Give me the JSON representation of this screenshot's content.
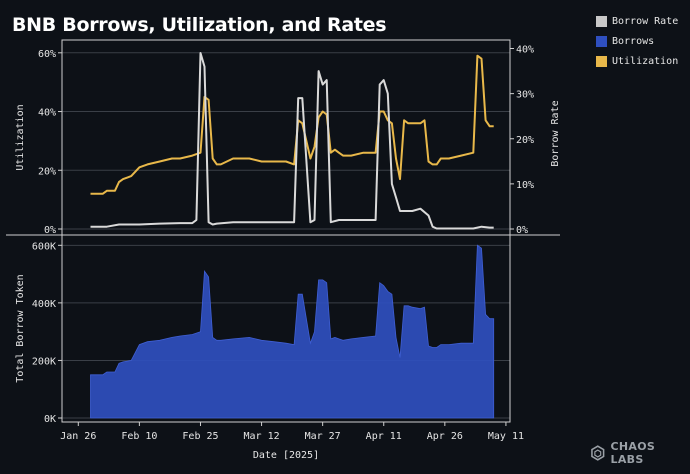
{
  "title": "BNB Borrows, Utilization, and Rates",
  "brand": "CHAOS LABS",
  "legend": [
    {
      "label": "Borrow Rate",
      "color": "#c8c8c8"
    },
    {
      "label": "Borrows",
      "color": "#2f4fbf"
    },
    {
      "label": "Utilization",
      "color": "#e8b84a"
    }
  ],
  "chart_data": {
    "type": "line",
    "xlabel": "Date [2025]",
    "x_ticks": [
      "Jan 26",
      "Feb 10",
      "Feb 25",
      "Mar 12",
      "Mar 27",
      "Apr 11",
      "Apr 26",
      "May 11"
    ],
    "x_range": [
      "2025-01-22",
      "2025-05-12"
    ],
    "panels": [
      {
        "name": "top",
        "ylabel_left": "Utilization",
        "ylabel_right": "Borrow Rate",
        "left_ticks": [
          "0%",
          "20%",
          "40%",
          "60%"
        ],
        "left_range": [
          0,
          0.63
        ],
        "right_ticks": [
          "0%",
          "10%",
          "20%",
          "30%",
          "40%"
        ],
        "right_range": [
          0,
          0.41
        ],
        "series": [
          {
            "name": "Utilization",
            "axis": "left",
            "color": "#e8b84a",
            "x": [
              "2025-01-29",
              "2025-02-01",
              "2025-02-02",
              "2025-02-04",
              "2025-02-05",
              "2025-02-06",
              "2025-02-08",
              "2025-02-10",
              "2025-02-12",
              "2025-02-15",
              "2025-02-18",
              "2025-02-20",
              "2025-02-23",
              "2025-02-25",
              "2025-02-26",
              "2025-02-27",
              "2025-02-28",
              "2025-03-01",
              "2025-03-02",
              "2025-03-05",
              "2025-03-09",
              "2025-03-12",
              "2025-03-15",
              "2025-03-18",
              "2025-03-20",
              "2025-03-21",
              "2025-03-22",
              "2025-03-24",
              "2025-03-25",
              "2025-03-26",
              "2025-03-27",
              "2025-03-28",
              "2025-03-29",
              "2025-03-30",
              "2025-03-31",
              "2025-04-01",
              "2025-04-03",
              "2025-04-06",
              "2025-04-09",
              "2025-04-10",
              "2025-04-11",
              "2025-04-12",
              "2025-04-13",
              "2025-04-14",
              "2025-04-15",
              "2025-04-16",
              "2025-04-17",
              "2025-04-18",
              "2025-04-20",
              "2025-04-21",
              "2025-04-22",
              "2025-04-23",
              "2025-04-24",
              "2025-04-25",
              "2025-04-27",
              "2025-04-30",
              "2025-05-03",
              "2025-05-04",
              "2025-05-05",
              "2025-05-06",
              "2025-05-07",
              "2025-05-08"
            ],
            "y": [
              0.12,
              0.12,
              0.13,
              0.13,
              0.16,
              0.17,
              0.18,
              0.21,
              0.22,
              0.23,
              0.24,
              0.24,
              0.25,
              0.26,
              0.45,
              0.44,
              0.24,
              0.22,
              0.22,
              0.24,
              0.24,
              0.23,
              0.23,
              0.23,
              0.22,
              0.37,
              0.36,
              0.24,
              0.28,
              0.38,
              0.4,
              0.39,
              0.26,
              0.27,
              0.26,
              0.25,
              0.25,
              0.26,
              0.26,
              0.4,
              0.4,
              0.37,
              0.36,
              0.24,
              0.17,
              0.37,
              0.36,
              0.36,
              0.36,
              0.37,
              0.23,
              0.22,
              0.22,
              0.24,
              0.24,
              0.25,
              0.26,
              0.59,
              0.58,
              0.37,
              0.35,
              0.35
            ]
          },
          {
            "name": "Borrow Rate",
            "axis": "right",
            "color": "#d9d9d9",
            "x": [
              "2025-01-29",
              "2025-02-02",
              "2025-02-05",
              "2025-02-10",
              "2025-02-15",
              "2025-02-20",
              "2025-02-23",
              "2025-02-24",
              "2025-02-25",
              "2025-02-26",
              "2025-02-27",
              "2025-02-28",
              "2025-03-01",
              "2025-03-05",
              "2025-03-12",
              "2025-03-18",
              "2025-03-20",
              "2025-03-21",
              "2025-03-22",
              "2025-03-24",
              "2025-03-25",
              "2025-03-26",
              "2025-03-27",
              "2025-03-28",
              "2025-03-29",
              "2025-03-31",
              "2025-04-03",
              "2025-04-09",
              "2025-04-10",
              "2025-04-11",
              "2025-04-12",
              "2025-04-13",
              "2025-04-14",
              "2025-04-15",
              "2025-04-16",
              "2025-04-17",
              "2025-04-18",
              "2025-04-20",
              "2025-04-22",
              "2025-04-23",
              "2025-04-24",
              "2025-04-27",
              "2025-04-30",
              "2025-05-03",
              "2025-05-05",
              "2025-05-07",
              "2025-05-08"
            ],
            "y": [
              0.005,
              0.005,
              0.01,
              0.01,
              0.012,
              0.013,
              0.013,
              0.02,
              0.39,
              0.36,
              0.015,
              0.01,
              0.012,
              0.015,
              0.015,
              0.015,
              0.015,
              0.29,
              0.29,
              0.015,
              0.02,
              0.35,
              0.32,
              0.33,
              0.015,
              0.02,
              0.02,
              0.02,
              0.32,
              0.33,
              0.3,
              0.1,
              0.07,
              0.04,
              0.04,
              0.04,
              0.04,
              0.045,
              0.03,
              0.005,
              0.001,
              0.001,
              0.001,
              0.001,
              0.005,
              0.003,
              0.003
            ]
          }
        ]
      },
      {
        "name": "bottom",
        "ylabel_left": "Total Borrow Token",
        "left_ticks": [
          "0K",
          "200K",
          "400K",
          "600K"
        ],
        "left_range": [
          0,
          615000
        ],
        "series": [
          {
            "name": "Borrows",
            "type": "area",
            "color": "#2f4fbf",
            "x": [
              "2025-01-29",
              "2025-02-01",
              "2025-02-02",
              "2025-02-04",
              "2025-02-05",
              "2025-02-06",
              "2025-02-08",
              "2025-02-10",
              "2025-02-12",
              "2025-02-15",
              "2025-02-18",
              "2025-02-20",
              "2025-02-23",
              "2025-02-25",
              "2025-02-26",
              "2025-02-27",
              "2025-02-28",
              "2025-03-01",
              "2025-03-02",
              "2025-03-05",
              "2025-03-09",
              "2025-03-12",
              "2025-03-15",
              "2025-03-18",
              "2025-03-20",
              "2025-03-21",
              "2025-03-22",
              "2025-03-24",
              "2025-03-25",
              "2025-03-26",
              "2025-03-27",
              "2025-03-28",
              "2025-03-29",
              "2025-03-30",
              "2025-03-31",
              "2025-04-01",
              "2025-04-03",
              "2025-04-06",
              "2025-04-09",
              "2025-04-10",
              "2025-04-11",
              "2025-04-12",
              "2025-04-13",
              "2025-04-14",
              "2025-04-15",
              "2025-04-16",
              "2025-04-17",
              "2025-04-18",
              "2025-04-20",
              "2025-04-21",
              "2025-04-22",
              "2025-04-23",
              "2025-04-24",
              "2025-04-25",
              "2025-04-27",
              "2025-04-30",
              "2025-05-03",
              "2025-05-04",
              "2025-05-05",
              "2025-05-06",
              "2025-05-07",
              "2025-05-08"
            ],
            "y": [
              150000,
              150000,
              160000,
              160000,
              190000,
              195000,
              200000,
              255000,
              265000,
              270000,
              280000,
              285000,
              290000,
              300000,
              510000,
              490000,
              280000,
              270000,
              270000,
              275000,
              280000,
              270000,
              265000,
              260000,
              255000,
              430000,
              430000,
              260000,
              300000,
              480000,
              480000,
              470000,
              275000,
              280000,
              275000,
              270000,
              275000,
              280000,
              285000,
              470000,
              460000,
              440000,
              430000,
              280000,
              210000,
              390000,
              390000,
              385000,
              380000,
              385000,
              250000,
              245000,
              245000,
              255000,
              255000,
              260000,
              260000,
              600000,
              590000,
              360000,
              345000,
              345000
            ]
          }
        ]
      }
    ]
  }
}
